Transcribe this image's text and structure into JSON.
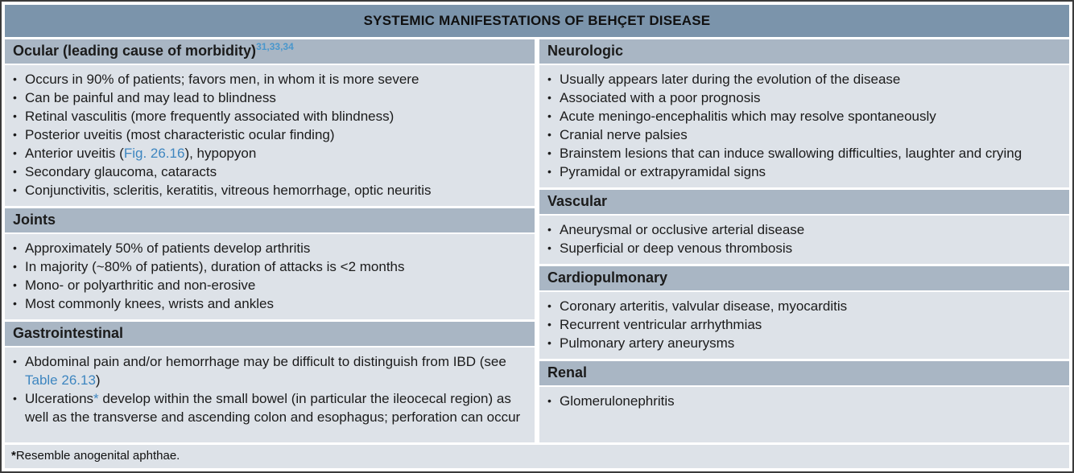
{
  "title": "SYSTEMIC MANIFESTATIONS OF BEHÇET DISEASE",
  "colors": {
    "title_bar_bg": "#7b94ab",
    "section_header_bg": "#a9b6c4",
    "body_bg": "#dde2e8",
    "link_blue": "#3e86c0",
    "citation_blue": "#4a97cc",
    "text": "#1b1b1b"
  },
  "footnote": {
    "marker": "*",
    "text": "Resemble anogenital aphthae."
  },
  "columns": {
    "left": [
      {
        "id": "ocular",
        "grow": false,
        "header": [
          {
            "t": "text",
            "v": "Ocular (leading cause of morbidity)"
          },
          {
            "t": "sup",
            "v": "31,33,34"
          }
        ],
        "items": [
          [
            {
              "t": "text",
              "v": "Occurs in 90% of patients; favors men, in whom it is more severe"
            }
          ],
          [
            {
              "t": "text",
              "v": "Can be painful and may lead to blindness"
            }
          ],
          [
            {
              "t": "text",
              "v": "Retinal vasculitis (more frequently associated with blindness)"
            }
          ],
          [
            {
              "t": "text",
              "v": "Posterior uveitis (most characteristic ocular finding)"
            }
          ],
          [
            {
              "t": "text",
              "v": "Anterior uveitis ("
            },
            {
              "t": "link",
              "v": "Fig. 26.16"
            },
            {
              "t": "text",
              "v": "), hypopyon"
            }
          ],
          [
            {
              "t": "text",
              "v": "Secondary glaucoma, cataracts"
            }
          ],
          [
            {
              "t": "text",
              "v": "Conjunctivitis, scleritis, keratitis, vitreous hemorrhage, optic neuritis"
            }
          ]
        ]
      },
      {
        "id": "joints",
        "grow": false,
        "header": [
          {
            "t": "text",
            "v": "Joints"
          }
        ],
        "items": [
          [
            {
              "t": "text",
              "v": "Approximately 50% of patients develop arthritis"
            }
          ],
          [
            {
              "t": "text",
              "v": "In majority (~80% of patients), duration of attacks is <2 months"
            }
          ],
          [
            {
              "t": "text",
              "v": "Mono- or polyarthritic and non-erosive"
            }
          ],
          [
            {
              "t": "text",
              "v": "Most commonly knees, wrists and ankles"
            }
          ]
        ]
      },
      {
        "id": "gastrointestinal",
        "grow": true,
        "header": [
          {
            "t": "text",
            "v": "Gastrointestinal"
          }
        ],
        "items": [
          [
            {
              "t": "text",
              "v": "Abdominal pain and/or hemorrhage may be difficult to distinguish from IBD (see "
            },
            {
              "t": "link",
              "v": "Table 26.13"
            },
            {
              "t": "text",
              "v": ")"
            }
          ],
          [
            {
              "t": "text",
              "v": "Ulcerations"
            },
            {
              "t": "fnref",
              "v": "*"
            },
            {
              "t": "text",
              "v": " develop within the small bowel (in particular the ileocecal region) as well as the transverse and ascending colon and esophagus; perforation can occur"
            }
          ]
        ]
      }
    ],
    "right": [
      {
        "id": "neurologic",
        "grow": false,
        "header": [
          {
            "t": "text",
            "v": "Neurologic"
          }
        ],
        "items": [
          [
            {
              "t": "text",
              "v": "Usually appears later during the evolution of the disease"
            }
          ],
          [
            {
              "t": "text",
              "v": "Associated with a poor prognosis"
            }
          ],
          [
            {
              "t": "text",
              "v": "Acute meningo-encephalitis which may resolve spontaneously"
            }
          ],
          [
            {
              "t": "text",
              "v": "Cranial nerve palsies"
            }
          ],
          [
            {
              "t": "text",
              "v": "Brainstem lesions that can induce swallowing difficulties, laughter and crying"
            }
          ],
          [
            {
              "t": "text",
              "v": "Pyramidal or extrapyramidal signs"
            }
          ]
        ]
      },
      {
        "id": "vascular",
        "grow": false,
        "header": [
          {
            "t": "text",
            "v": "Vascular"
          }
        ],
        "items": [
          [
            {
              "t": "text",
              "v": "Aneurysmal or occlusive arterial disease"
            }
          ],
          [
            {
              "t": "text",
              "v": "Superficial or deep venous thrombosis"
            }
          ]
        ]
      },
      {
        "id": "cardiopulmonary",
        "grow": false,
        "header": [
          {
            "t": "text",
            "v": "Cardiopulmonary"
          }
        ],
        "items": [
          [
            {
              "t": "text",
              "v": "Coronary arteritis, valvular disease, myocarditis"
            }
          ],
          [
            {
              "t": "text",
              "v": "Recurrent ventricular arrhythmias"
            }
          ],
          [
            {
              "t": "text",
              "v": "Pulmonary artery aneurysms"
            }
          ]
        ]
      },
      {
        "id": "renal",
        "grow": true,
        "header": [
          {
            "t": "text",
            "v": "Renal"
          }
        ],
        "items": [
          [
            {
              "t": "text",
              "v": "Glomerulonephritis"
            }
          ]
        ]
      }
    ]
  }
}
